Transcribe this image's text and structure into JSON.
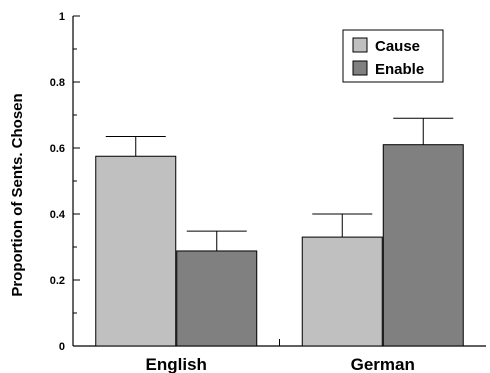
{
  "chart_data": {
    "type": "bar",
    "categories": [
      "English",
      "German"
    ],
    "series": [
      {
        "name": "Cause",
        "values": [
          0.575,
          0.33
        ],
        "errors": [
          0.06,
          0.07
        ],
        "color": "#c0c0c0"
      },
      {
        "name": "Enable",
        "values": [
          0.288,
          0.61
        ],
        "errors": [
          0.06,
          0.08
        ],
        "color": "#808080"
      }
    ],
    "ylabel": "Proportion of Sents. Chosen",
    "xlabel": "",
    "ylim": [
      0,
      1
    ],
    "yticks": [
      "0",
      "0.2",
      "0.4",
      "0.6",
      "0.8",
      "1"
    ],
    "legend_position": "top-right",
    "grid": false
  }
}
